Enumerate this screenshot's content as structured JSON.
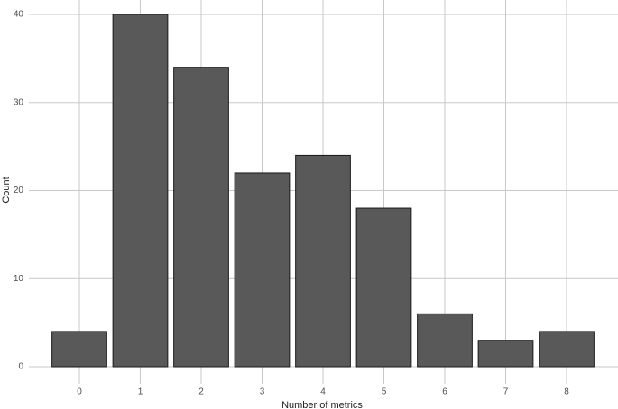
{
  "chart_data": {
    "type": "bar",
    "categories": [
      "0",
      "1",
      "2",
      "3",
      "4",
      "5",
      "6",
      "7",
      "8"
    ],
    "values": [
      4,
      40,
      34,
      22,
      24,
      18,
      6,
      3,
      4
    ],
    "color": "#595959",
    "x_label": "Number of metrics",
    "y_label": "Count",
    "ylim": [
      0,
      40
    ],
    "yticks": [
      0,
      10,
      20,
      30,
      40
    ],
    "grid": true
  }
}
